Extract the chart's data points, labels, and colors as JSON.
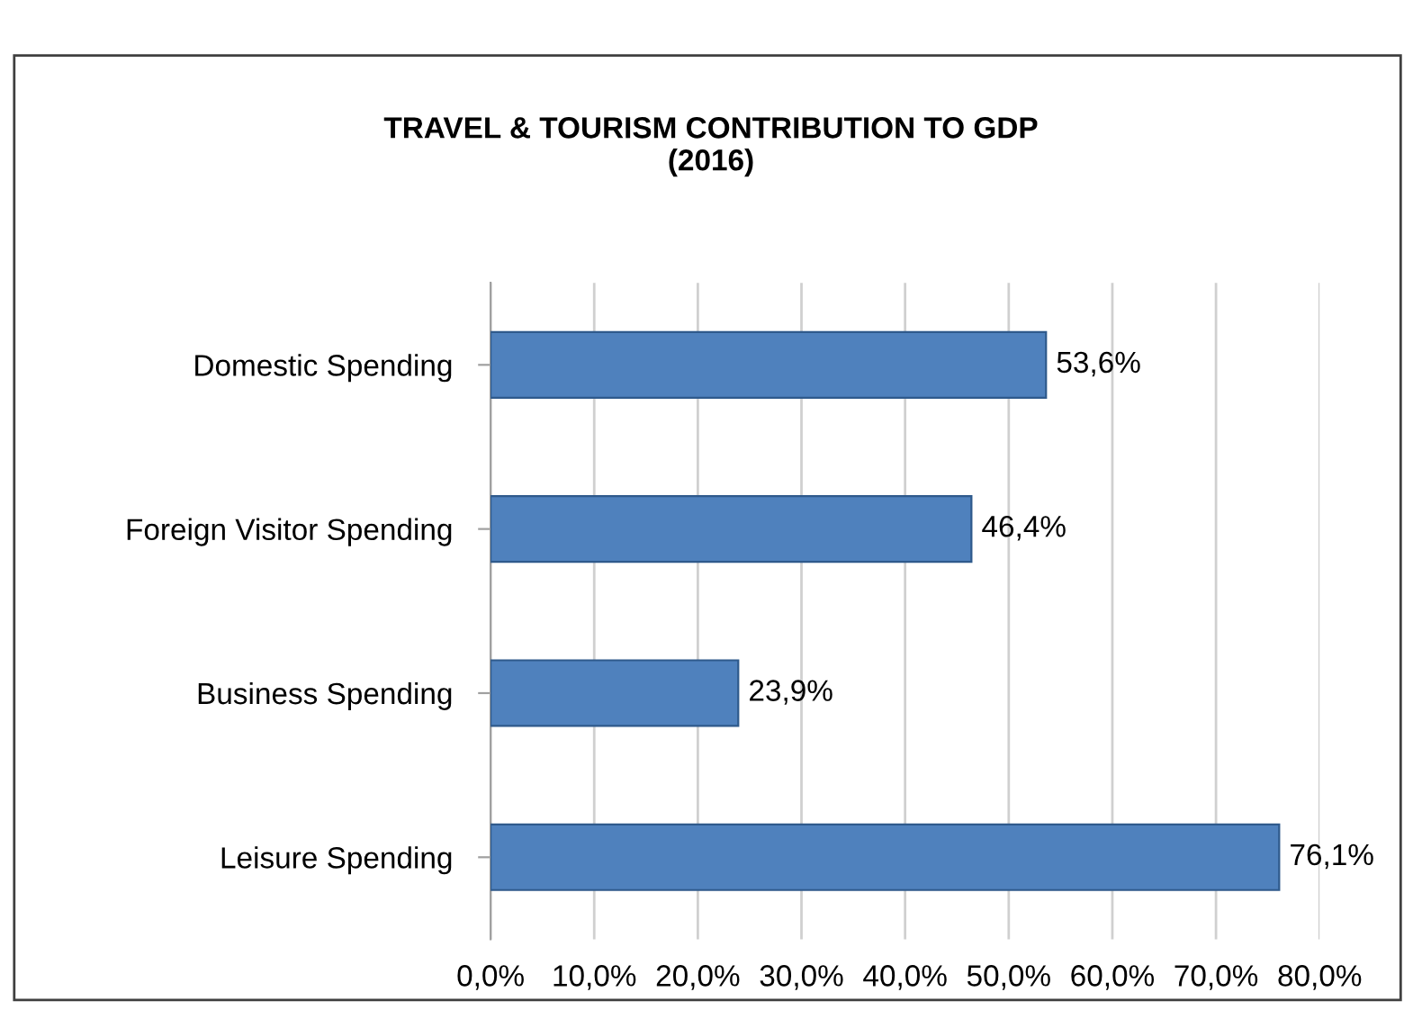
{
  "chart_data": {
    "type": "bar",
    "orientation": "horizontal",
    "title": "TRAVEL & TOURISM CONTRIBUTION TO GDP\n(2016)",
    "categories": [
      "Domestic Spending",
      "Foreign Visitor Spending",
      "Business Spending",
      "Leisure Spending"
    ],
    "values": [
      53.6,
      46.4,
      23.9,
      76.1
    ],
    "value_labels": [
      "53,6%",
      "46,4%",
      "23,9%",
      "76,1%"
    ],
    "color": "#4f81bd",
    "xlim": [
      0,
      80
    ],
    "xticks": [
      {
        "value": 0,
        "label": "0,0%"
      },
      {
        "value": 10,
        "label": "10,0%"
      },
      {
        "value": 20,
        "label": "20,0%"
      },
      {
        "value": 30,
        "label": "30,0%"
      },
      {
        "value": 40,
        "label": "40,0%"
      },
      {
        "value": 50,
        "label": "50,0%"
      },
      {
        "value": 60,
        "label": "60,0%"
      },
      {
        "value": 70,
        "label": "70,0%"
      },
      {
        "value": 80,
        "label": "80,0%"
      }
    ],
    "grid": "x"
  }
}
